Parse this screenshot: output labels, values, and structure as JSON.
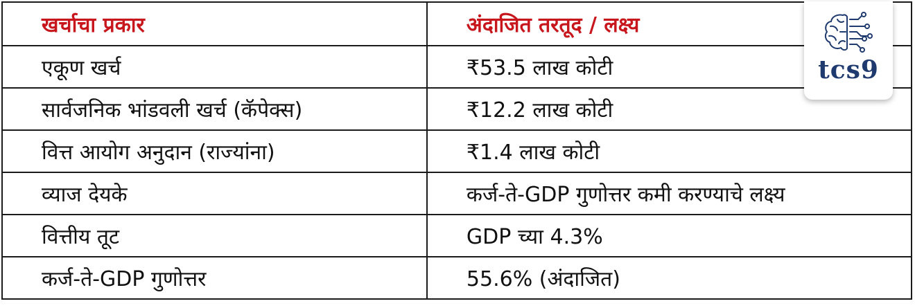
{
  "table": {
    "headers": [
      "खर्चाचा प्रकार",
      "अंदाजित तरतूद / लक्ष्य"
    ],
    "rows": [
      [
        "एकूण खर्च",
        "₹53.5 लाख कोटी"
      ],
      [
        "सार्वजनिक भांडवली खर्च (कॅपेक्स)",
        "₹12.2 लाख कोटी"
      ],
      [
        "वित्त आयोग अनुदान (राज्यांना)",
        "₹1.4 लाख कोटी"
      ],
      [
        "व्याज देयके",
        "कर्ज-ते-GDP गुणोत्तर कमी करण्याचे लक्ष्य"
      ],
      [
        "वित्तीय तूट",
        "GDP च्या 4.3%"
      ],
      [
        "कर्ज-ते-GDP गुणोत्तर",
        "55.6% (अंदाजित)"
      ]
    ]
  },
  "logo": {
    "text": "tcs9",
    "icon": "brain-circuit-icon"
  },
  "colors": {
    "header_text": "#c8161d",
    "logo_text": "#1e3a6e"
  }
}
